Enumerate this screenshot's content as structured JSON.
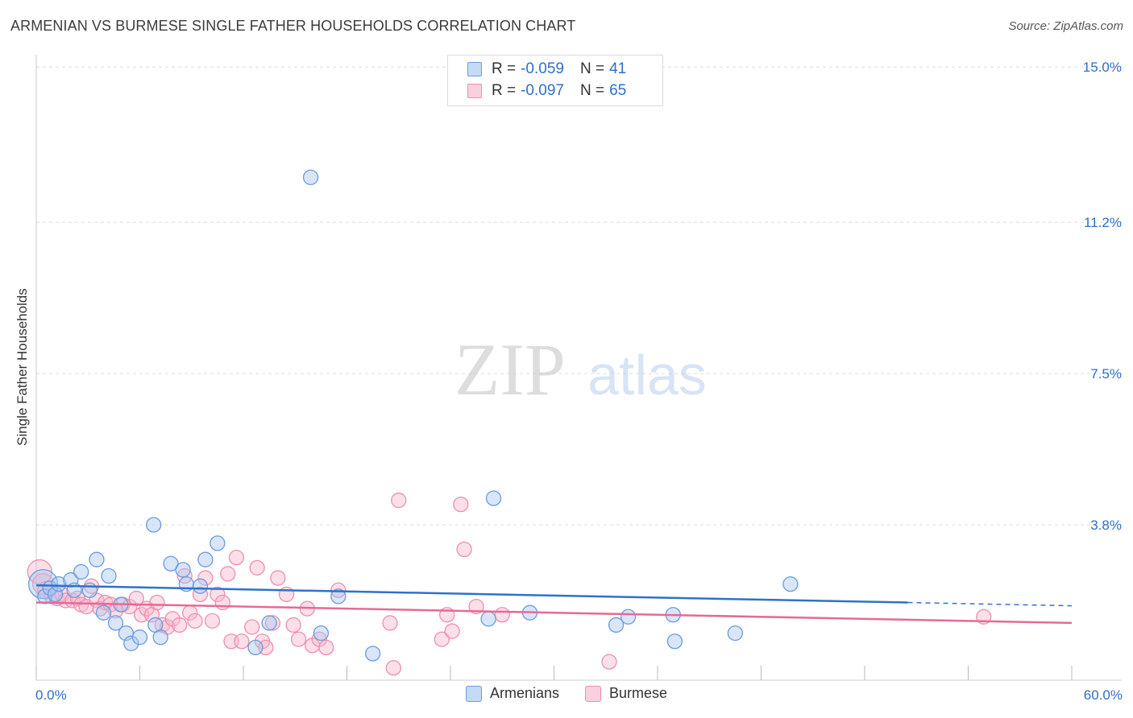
{
  "title": "ARMENIAN VS BURMESE SINGLE FATHER HOUSEHOLDS CORRELATION CHART",
  "source": "Source: ZipAtlas.com",
  "watermark": {
    "zip": "ZIP",
    "atlas": "atlas"
  },
  "legend": {
    "rows": [
      {
        "r_label": "R =",
        "r_value": "-0.059",
        "n_label": "N =",
        "n_value": "41"
      },
      {
        "r_label": "R =",
        "r_value": "-0.097",
        "n_label": "N =",
        "n_value": "65"
      }
    ]
  },
  "colors": {
    "armenian_fill": "#a9c8f0",
    "armenian_stroke": "#6a9be0",
    "armenian_line": "#2e72c9",
    "burmese_fill": "#f8b8cc",
    "burmese_stroke": "#ef8eac",
    "burmese_line": "#e66a96",
    "axis_text": "#2e6fcc",
    "grid": "#dcdcdc"
  },
  "chart_data": {
    "type": "scatter",
    "title": "ARMENIAN VS BURMESE SINGLE FATHER HOUSEHOLDS CORRELATION CHART",
    "xlabel": "",
    "ylabel": "Single Father Households",
    "xlim": [
      0,
      60
    ],
    "ylim": [
      0,
      15.3
    ],
    "x_tick_labels": [
      "0.0%",
      "60.0%"
    ],
    "y_ticks": [
      3.8,
      7.5,
      11.2,
      15.0
    ],
    "y_tick_labels": [
      "3.8%",
      "7.5%",
      "11.2%",
      "15.0%"
    ],
    "legend_placement": "top-center",
    "series": [
      {
        "name": "Armenians",
        "r": -0.059,
        "n": 41,
        "trend": {
          "x0": 0,
          "y0": 2.32,
          "x1": 50.5,
          "y1": 1.9,
          "dash_to_x": 60,
          "dash_to_y": 1.82
        },
        "points": [
          [
            0.4,
            2.35,
            18
          ],
          [
            0.5,
            2.05,
            9
          ],
          [
            0.8,
            2.25,
            9
          ],
          [
            1.1,
            2.1,
            9
          ],
          [
            1.3,
            2.35,
            9
          ],
          [
            2.0,
            2.45,
            9
          ],
          [
            2.2,
            2.2,
            9
          ],
          [
            2.6,
            2.65,
            9
          ],
          [
            3.1,
            2.2,
            9
          ],
          [
            3.5,
            2.95,
            9
          ],
          [
            3.9,
            1.65,
            9
          ],
          [
            4.2,
            2.55,
            9
          ],
          [
            4.6,
            1.4,
            9
          ],
          [
            4.9,
            1.85,
            9
          ],
          [
            5.2,
            1.15,
            9
          ],
          [
            5.5,
            0.9,
            9
          ],
          [
            6.0,
            1.05,
            9
          ],
          [
            6.8,
            3.8,
            9
          ],
          [
            6.9,
            1.35,
            9
          ],
          [
            7.2,
            1.05,
            9
          ],
          [
            7.8,
            2.85,
            9
          ],
          [
            8.5,
            2.7,
            9
          ],
          [
            8.7,
            2.35,
            9
          ],
          [
            9.5,
            2.3,
            9
          ],
          [
            9.8,
            2.95,
            9
          ],
          [
            10.5,
            3.35,
            9
          ],
          [
            12.7,
            0.8,
            9
          ],
          [
            13.5,
            1.4,
            9
          ],
          [
            15.9,
            12.3,
            9
          ],
          [
            16.5,
            1.15,
            9
          ],
          [
            17.5,
            2.05,
            9
          ],
          [
            19.5,
            0.65,
            9
          ],
          [
            26.2,
            1.5,
            9
          ],
          [
            26.5,
            4.45,
            9
          ],
          [
            28.6,
            1.65,
            9
          ],
          [
            33.6,
            1.35,
            9
          ],
          [
            34.3,
            1.55,
            9
          ],
          [
            36.9,
            1.6,
            9
          ],
          [
            37.0,
            0.95,
            9
          ],
          [
            40.5,
            1.15,
            9
          ],
          [
            43.7,
            2.35,
            9
          ]
        ]
      },
      {
        "name": "Burmese",
        "r": -0.097,
        "n": 65,
        "trend": {
          "x0": 0,
          "y0": 1.9,
          "x1": 60,
          "y1": 1.4
        },
        "points": [
          [
            0.2,
            2.65,
            15
          ],
          [
            0.4,
            2.35,
            13
          ],
          [
            0.6,
            2.2,
            11
          ],
          [
            0.9,
            2.05,
            9
          ],
          [
            1.2,
            2.0,
            9
          ],
          [
            1.5,
            2.1,
            9
          ],
          [
            1.7,
            1.95,
            9
          ],
          [
            2.1,
            1.95,
            9
          ],
          [
            2.4,
            2.0,
            9
          ],
          [
            2.6,
            1.85,
            9
          ],
          [
            2.9,
            1.8,
            9
          ],
          [
            3.2,
            2.3,
            9
          ],
          [
            3.5,
            1.95,
            9
          ],
          [
            3.7,
            1.75,
            9
          ],
          [
            4.0,
            1.9,
            9
          ],
          [
            4.3,
            1.85,
            9
          ],
          [
            4.6,
            1.7,
            9
          ],
          [
            5.0,
            1.85,
            9
          ],
          [
            5.4,
            1.8,
            9
          ],
          [
            5.8,
            2.0,
            9
          ],
          [
            6.1,
            1.6,
            9
          ],
          [
            6.4,
            1.75,
            9
          ],
          [
            6.7,
            1.6,
            9
          ],
          [
            7.0,
            1.9,
            9
          ],
          [
            7.3,
            1.35,
            9
          ],
          [
            7.6,
            1.3,
            9
          ],
          [
            7.9,
            1.5,
            9
          ],
          [
            8.3,
            1.35,
            9
          ],
          [
            8.6,
            2.55,
            9
          ],
          [
            8.9,
            1.65,
            9
          ],
          [
            9.2,
            1.45,
            9
          ],
          [
            9.5,
            2.1,
            9
          ],
          [
            9.8,
            2.5,
            9
          ],
          [
            10.2,
            1.45,
            9
          ],
          [
            10.5,
            2.1,
            9
          ],
          [
            10.8,
            1.9,
            9
          ],
          [
            11.1,
            2.6,
            9
          ],
          [
            11.3,
            0.95,
            9
          ],
          [
            11.6,
            3.0,
            9
          ],
          [
            11.9,
            0.95,
            9
          ],
          [
            12.5,
            1.3,
            9
          ],
          [
            12.8,
            2.75,
            9
          ],
          [
            13.1,
            0.95,
            9
          ],
          [
            13.3,
            0.8,
            9
          ],
          [
            13.7,
            1.4,
            9
          ],
          [
            14.0,
            2.5,
            9
          ],
          [
            14.5,
            2.1,
            9
          ],
          [
            14.9,
            1.35,
            9
          ],
          [
            15.2,
            1.0,
            9
          ],
          [
            15.7,
            1.75,
            9
          ],
          [
            16.0,
            0.85,
            9
          ],
          [
            16.4,
            1.0,
            9
          ],
          [
            16.8,
            0.8,
            9
          ],
          [
            17.5,
            2.2,
            9
          ],
          [
            20.5,
            1.4,
            9
          ],
          [
            20.7,
            0.3,
            9
          ],
          [
            21.0,
            4.4,
            9
          ],
          [
            23.5,
            1.0,
            9
          ],
          [
            23.8,
            1.6,
            9
          ],
          [
            24.1,
            1.2,
            9
          ],
          [
            24.6,
            4.3,
            9
          ],
          [
            24.8,
            3.2,
            9
          ],
          [
            25.5,
            1.8,
            9
          ],
          [
            27.0,
            1.6,
            9
          ],
          [
            33.2,
            0.45,
            9
          ],
          [
            54.9,
            1.55,
            9
          ]
        ]
      }
    ]
  }
}
